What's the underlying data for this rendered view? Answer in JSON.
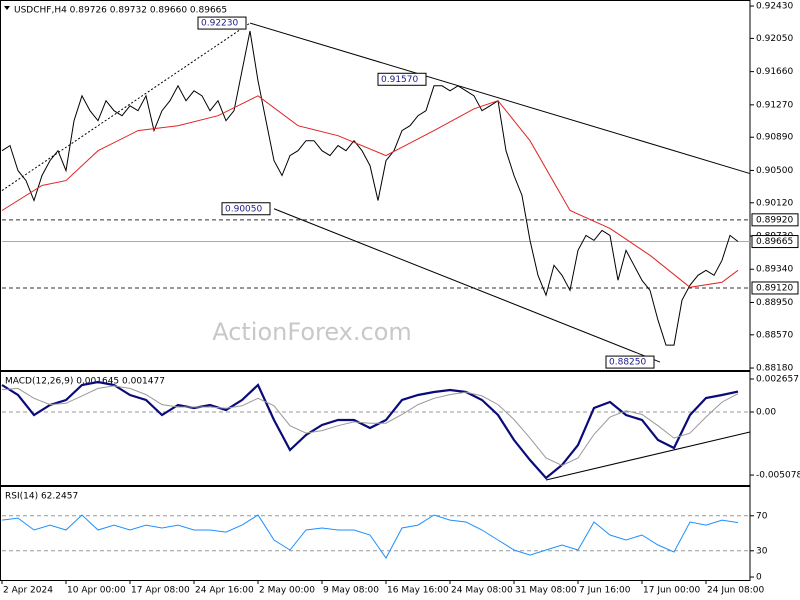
{
  "chart_data": [
    {
      "type": "line",
      "title": "USDCHF,H4 0.89726 0.89732 0.89660 0.89665",
      "watermark": "ActionForex.com",
      "xlim": [
        0,
        93.5
      ],
      "ylim": [
        0.88157,
        0.92489
      ],
      "yticks": [
        {
          "value": 0.9243,
          "label": "0.92430"
        },
        {
          "value": 0.9205,
          "label": "0.92050"
        },
        {
          "value": 0.9166,
          "label": "0.91660"
        },
        {
          "value": 0.9127,
          "label": "0.91270"
        },
        {
          "value": 0.9089,
          "label": "0.90890"
        },
        {
          "value": 0.905,
          "label": "0.90500"
        },
        {
          "value": 0.9012,
          "label": "0.90120"
        },
        {
          "value": 0.8973,
          "label": "0.89730"
        },
        {
          "value": 0.8934,
          "label": "0.89340"
        },
        {
          "value": 0.8895,
          "label": "0.88950"
        },
        {
          "value": 0.8857,
          "label": "0.88570"
        },
        {
          "value": 0.8818,
          "label": "0.88180"
        }
      ],
      "x": [
        0,
        1,
        2,
        3,
        4,
        5,
        6,
        7,
        8,
        9,
        10,
        11,
        12,
        13,
        14,
        15,
        16,
        17,
        18,
        19,
        20,
        21,
        22,
        23,
        24,
        25,
        26,
        27,
        28,
        29,
        30,
        31,
        32,
        33,
        34,
        35,
        36,
        37,
        38,
        39,
        40,
        41,
        42,
        43,
        44,
        45,
        46,
        47,
        48,
        49,
        50,
        51,
        52,
        53,
        54,
        55,
        56,
        57,
        58,
        59,
        60,
        61,
        62,
        63,
        64,
        65,
        66,
        67,
        68,
        69,
        70,
        71,
        72,
        73,
        74,
        75,
        76,
        77,
        78,
        79,
        80,
        81,
        82,
        83,
        84,
        85,
        86,
        87,
        88,
        89,
        90,
        91,
        92
      ],
      "series": [
        {
          "color": "#000000",
          "values": [
            0.90732,
            0.90791,
            0.90498,
            0.90381,
            0.90147,
            0.9044,
            0.90615,
            0.90732,
            0.90498,
            0.91084,
            0.91376,
            0.91201,
            0.91084,
            0.91318,
            0.91201,
            0.91142,
            0.91259,
            0.91201,
            0.91376,
            0.90967,
            0.91201,
            0.91318,
            0.91493,
            0.91318,
            0.91435,
            0.91376,
            0.91201,
            0.91318,
            0.91084,
            0.91201,
            0.91669,
            0.92137,
            0.91552,
            0.91084,
            0.90615,
            0.9044,
            0.90674,
            0.90732,
            0.90849,
            0.90849,
            0.90732,
            0.90674,
            0.90791,
            0.90732,
            0.90849,
            0.90732,
            0.90557,
            0.90147,
            0.90615,
            0.90732,
            0.90967,
            0.91025,
            0.91142,
            0.91201,
            0.91493,
            0.91493,
            0.91435,
            0.91493,
            0.91435,
            0.91376,
            0.91201,
            0.91259,
            0.91318,
            0.90732,
            0.9044,
            0.90206,
            0.89679,
            0.89269,
            0.89035,
            0.89386,
            0.89269,
            0.89093,
            0.89562,
            0.89737,
            0.89679,
            0.89796,
            0.89737,
            0.8921,
            0.89562,
            0.89386,
            0.8921,
            0.89093,
            0.88742,
            0.88449,
            0.88449,
            0.88976,
            0.89152,
            0.89269,
            0.89327,
            0.89269,
            0.89445,
            0.89737,
            0.89665
          ]
        },
        {
          "color": "#e02424",
          "x": [
            0,
            5,
            8,
            12,
            17,
            22,
            27,
            32,
            37,
            42,
            48,
            54,
            59,
            62,
            66,
            71,
            76,
            81,
            86,
            90,
            92
          ],
          "values": [
            0.9003,
            0.90323,
            0.90381,
            0.90732,
            0.90967,
            0.91025,
            0.91142,
            0.91376,
            0.91025,
            0.90908,
            0.90674,
            0.90967,
            0.91224,
            0.91318,
            0.90849,
            0.9003,
            0.89819,
            0.89503,
            0.89128,
            0.89187,
            0.89327
          ]
        }
      ],
      "levels": [
        {
          "value": 0.8992,
          "label": "0.89920",
          "style": "dashed"
        },
        {
          "value": 0.89665,
          "label": "0.89665",
          "style": "solid"
        },
        {
          "value": 0.8912,
          "label": "0.89120",
          "style": "dashed"
        }
      ],
      "trendlines": [
        {
          "x": [
            0,
            31
          ],
          "y": [
            0.90264,
            0.9223
          ],
          "style": "dotted"
        },
        {
          "x": [
            31,
            93.5
          ],
          "y": [
            0.9223,
            0.90463
          ],
          "style": "solid"
        },
        {
          "x": [
            34,
            82.25
          ],
          "y": [
            0.9005,
            0.8825
          ],
          "style": "solid"
        }
      ],
      "annotations": [
        {
          "x": 31,
          "y": {
            "value": 0.9223,
            "label": "0.92230"
          }
        },
        {
          "x": 53.5,
          "y": {
            "value": 0.9157,
            "label": "0.91570"
          }
        },
        {
          "x": 34,
          "y": {
            "value": 0.9005,
            "label": "0.90050"
          }
        },
        {
          "x": 82,
          "y": {
            "value": 0.8825,
            "label": "0.88250"
          }
        }
      ]
    },
    {
      "type": "line",
      "title": "MACD(12,26,9) 0.001645 0.001477",
      "xlim": [
        0,
        93.5
      ],
      "ylim": [
        -0.005878,
        0.003221
      ],
      "yticks": [
        0.002657,
        {
          "value": 0,
          "label": "0.00"
        },
        -0.005078
      ],
      "levels": [
        0
      ],
      "x": [
        0,
        2,
        4,
        6,
        8,
        10,
        12,
        14,
        16,
        18,
        20,
        22,
        24,
        26,
        28,
        30,
        32,
        34,
        36,
        38,
        40,
        42,
        44,
        46,
        48,
        50,
        52,
        54,
        56,
        58,
        60,
        62,
        64,
        66,
        68,
        70,
        72,
        74,
        76,
        78,
        80,
        82,
        84,
        86,
        88,
        90,
        92
      ],
      "series": [
        {
          "color": "#0a0a7a",
          "values": [
            0.002174,
            0.001369,
            -0.000242,
            0.000564,
            0.000966,
            0.002174,
            0.002415,
            0.002174,
            0.001369,
            0.000966,
            -0.000242,
            0.000564,
            0.000322,
            0.000564,
            0.000161,
            0.000966,
            0.002174,
            -0.000644,
            -0.00306,
            -0.001852,
            -0.001047,
            -0.000644,
            -0.000644,
            -0.001288,
            -0.000644,
            0.000966,
            0.001369,
            0.00161,
            0.001771,
            0.00161,
            0.000966,
            -0.000242,
            -0.002254,
            -0.003865,
            -0.005314,
            -0.004267,
            -0.002657,
            0.000322,
            0.000805,
            -0.000242,
            -0.000644,
            -0.002254,
            -0.002899,
            -0.000242,
            0.001127,
            0.001369,
            0.001645
          ]
        },
        {
          "color": "#999999",
          "values": [
            0.0018,
            0.0019,
            0.0011,
            0.0006,
            0.0007,
            0.0013,
            0.0019,
            0.0021,
            0.0019,
            0.0014,
            0.0006,
            0.0004,
            0.0004,
            0.0004,
            0.0003,
            0.0005,
            0.0011,
            0.0005,
            -0.0011,
            -0.0017,
            -0.0015,
            -0.0011,
            -0.0008,
            -0.0009,
            -0.0009,
            -0.0002,
            0.0006,
            0.0011,
            0.0014,
            0.0016,
            0.0013,
            0.0006,
            -0.0006,
            -0.0021,
            -0.0037,
            -0.0043,
            -0.0037,
            -0.0018,
            -0.0004,
            0.0001,
            -0.0002,
            -0.0011,
            -0.0021,
            -0.0017,
            -0.0004,
            0.0008,
            0.001477
          ]
        }
      ],
      "trendlines": [
        {
          "x": [
            68,
            93.5
          ],
          "y": [
            -0.005475,
            -0.00161
          ],
          "style": "solid"
        }
      ]
    },
    {
      "type": "line",
      "title": "RSI(14) 62.2457",
      "xlim": [
        0,
        93.5
      ],
      "ylim": [
        -3.4,
        102.9
      ],
      "yticks": [
        70,
        30,
        0
      ],
      "levels": [
        70,
        30
      ],
      "xticks": [
        {
          "value": 0,
          "label": "2 Apr 2024"
        },
        {
          "value": 8,
          "label": "10 Apr 00:00"
        },
        {
          "value": 16,
          "label": "17 Apr 08:00"
        },
        {
          "value": 24,
          "label": "24 Apr 16:00"
        },
        {
          "value": 32,
          "label": "2 May 00:00"
        },
        {
          "value": 40,
          "label": "9 May 08:00"
        },
        {
          "value": 48,
          "label": "16 May 16:00"
        },
        {
          "value": 56,
          "label": "24 May 08:00"
        },
        {
          "value": 64,
          "label": "31 May 08:00"
        },
        {
          "value": 72,
          "label": "7 Jun 16:00"
        },
        {
          "value": 80,
          "label": "17 Jun 00:00"
        },
        {
          "value": 88,
          "label": "24 Jun 08:00"
        }
      ],
      "x": [
        0,
        2,
        4,
        6,
        8,
        10,
        12,
        14,
        16,
        18,
        20,
        22,
        24,
        26,
        28,
        30,
        32,
        34,
        36,
        38,
        40,
        42,
        44,
        46,
        48,
        50,
        52,
        54,
        56,
        58,
        60,
        62,
        64,
        66,
        68,
        70,
        72,
        74,
        76,
        78,
        80,
        82,
        84,
        86,
        88,
        90,
        92
      ],
      "series": [
        {
          "color": "#1e90ff",
          "values": [
            65.1,
            67.4,
            53.7,
            59.4,
            53.7,
            70.9,
            53.7,
            59.4,
            53.7,
            59.4,
            56,
            59.4,
            53.7,
            53.7,
            51.4,
            59.4,
            70.9,
            42.3,
            30.9,
            53.7,
            56,
            53.7,
            53.7,
            48,
            21.7,
            56,
            59.4,
            70.9,
            65.1,
            62.9,
            53.7,
            42.3,
            30.9,
            25.1,
            30.9,
            36.6,
            30.9,
            62.9,
            48,
            42.3,
            48,
            36.6,
            28.6,
            62.9,
            59.4,
            65.1,
            62.2457
          ]
        }
      ]
    }
  ]
}
